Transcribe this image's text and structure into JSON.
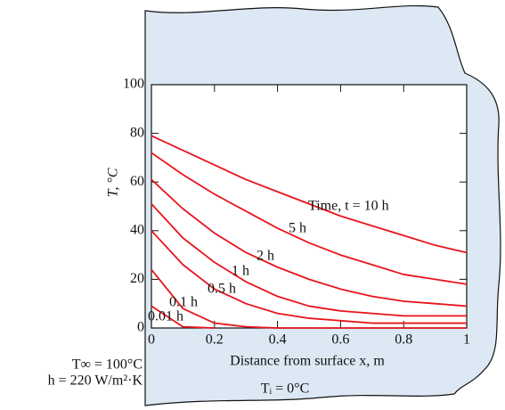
{
  "chart_data": {
    "type": "line",
    "x": [
      0,
      0.1,
      0.2,
      0.3,
      0.4,
      0.5,
      0.6,
      0.7,
      0.8,
      0.9,
      1
    ],
    "series": [
      {
        "name": "Time, t = 10 h",
        "color": "#e8141c",
        "values": [
          79,
          73,
          67,
          61,
          56,
          51,
          46,
          42,
          38,
          34,
          31
        ]
      },
      {
        "name": "5 h",
        "color": "#e8141c",
        "values": [
          72,
          63,
          55,
          48,
          41,
          35,
          30,
          26,
          22,
          20,
          18
        ]
      },
      {
        "name": "2 h",
        "color": "#e8141c",
        "values": [
          61,
          49,
          39,
          31,
          25,
          20,
          16,
          13,
          11,
          10,
          9
        ]
      },
      {
        "name": "1 h",
        "color": "#e8141c",
        "values": [
          51,
          37,
          27,
          19,
          13,
          9,
          7,
          6,
          5,
          5,
          5
        ]
      },
      {
        "name": "0.5 h",
        "color": "#e8141c",
        "values": [
          40,
          26,
          16,
          10,
          6,
          4,
          3,
          2,
          2,
          2,
          2
        ]
      },
      {
        "name": "0.1 h",
        "color": "#e8141c",
        "values": [
          24,
          8,
          2,
          0.5,
          0,
          0,
          0,
          0,
          0,
          0,
          0
        ]
      },
      {
        "name": "0.01 h",
        "color": "#e8141c",
        "values": [
          9,
          0.5,
          0,
          null,
          null,
          null,
          null,
          null,
          null,
          null,
          null
        ]
      }
    ],
    "xlabel": "Distance from surface x, m",
    "ylabel": "T, °C",
    "xlim": [
      0,
      1
    ],
    "xticks": [
      0,
      0.2,
      0.4,
      0.6,
      0.8,
      1
    ],
    "ylim": [
      0,
      100
    ],
    "yticks": [
      0,
      20,
      40,
      60,
      80,
      100
    ],
    "annotations": [
      "T∞ = 100°C",
      "h = 220 W/m²·K",
      "Tᵢ = 0°C"
    ]
  }
}
